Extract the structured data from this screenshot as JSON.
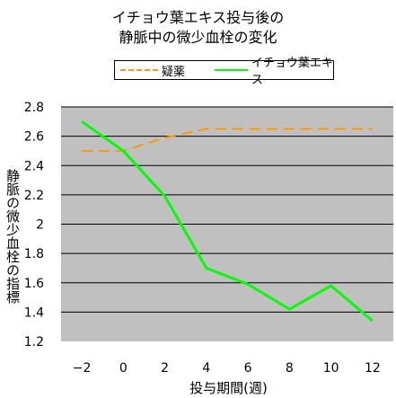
{
  "title_lines": [
    "イチョウ葉エキス投与後の",
    "静脈中の微少血栓の変化"
  ],
  "chart_data": {
    "type": "line",
    "title": "イチョウ葉エキス投与後の静脈中の微少血栓の変化",
    "xlabel": "投与期間(週)",
    "ylabel": "静脈の微少血栓の指標",
    "xlim": [
      -3,
      13
    ],
    "ylim": [
      1.2,
      2.8
    ],
    "x_ticks": [
      -2,
      0,
      2,
      4,
      6,
      8,
      10,
      12
    ],
    "x_tick_labels": [
      "−2",
      "0",
      "2",
      "4",
      "6",
      "8",
      "10",
      "12"
    ],
    "y_ticks": [
      1.2,
      1.4,
      1.6,
      1.8,
      2,
      2.2,
      2.4,
      2.6,
      2.8
    ],
    "y_tick_labels": [
      "1.2",
      "1.4",
      "1.6",
      "1.8",
      "2",
      "2.2",
      "2.4",
      "2.6",
      "2.8"
    ],
    "grid": "horizontal",
    "legend_position": "top",
    "plot_background": "#c0c0c0",
    "series": [
      {
        "name": "疑薬",
        "color": "#ff9900",
        "dash": "dashed",
        "x": [
          -2,
          0,
          2,
          4,
          6,
          8,
          10,
          12
        ],
        "y": [
          2.5,
          2.5,
          2.59,
          2.65,
          2.65,
          2.65,
          2.65,
          2.65
        ]
      },
      {
        "name": "イチョウ葉エキス",
        "color": "#00ff00",
        "dash": "solid",
        "x": [
          -2,
          0,
          2,
          4,
          6,
          8,
          10,
          12
        ],
        "y": [
          2.7,
          2.5,
          2.19,
          1.7,
          1.59,
          1.42,
          1.58,
          1.34
        ]
      }
    ]
  }
}
